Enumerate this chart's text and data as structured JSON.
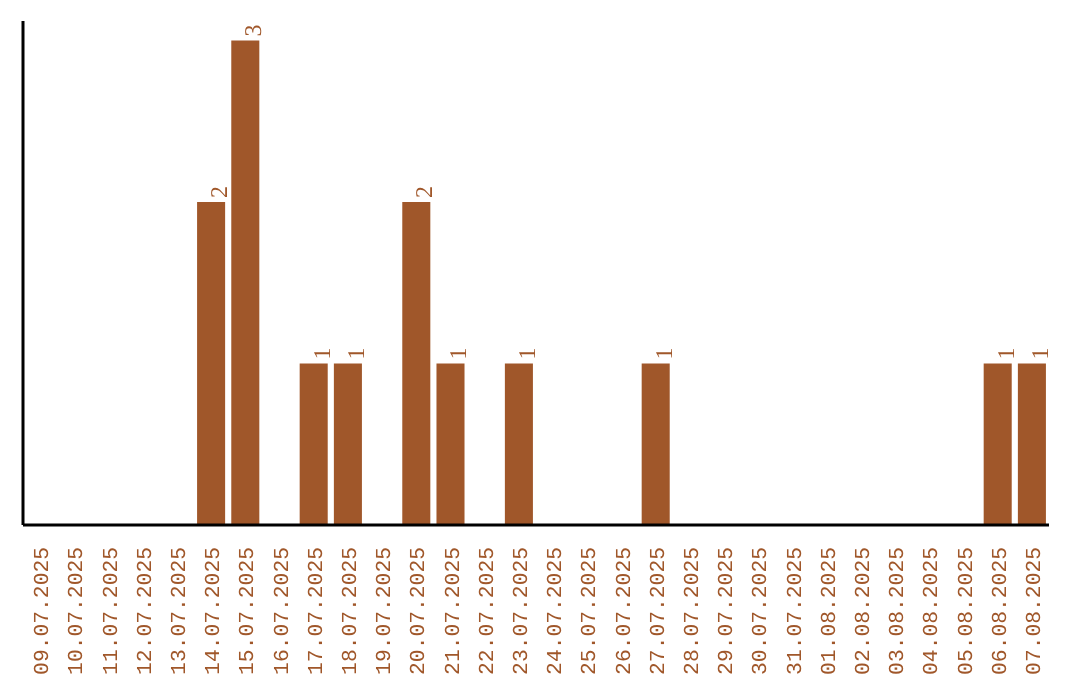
{
  "chart_data": {
    "type": "bar",
    "categories": [
      "09.07.2025",
      "10.07.2025",
      "11.07.2025",
      "12.07.2025",
      "13.07.2025",
      "14.07.2025",
      "15.07.2025",
      "16.07.2025",
      "17.07.2025",
      "18.07.2025",
      "19.07.2025",
      "20.07.2025",
      "21.07.2025",
      "22.07.2025",
      "23.07.2025",
      "24.07.2025",
      "25.07.2025",
      "26.07.2025",
      "27.07.2025",
      "28.07.2025",
      "29.07.2025",
      "30.07.2025",
      "31.07.2025",
      "01.08.2025",
      "02.08.2025",
      "03.08.2025",
      "04.08.2025",
      "05.08.2025",
      "06.08.2025",
      "07.08.2025"
    ],
    "values": [
      0,
      0,
      0,
      0,
      0,
      2,
      3,
      0,
      1,
      1,
      0,
      2,
      1,
      0,
      1,
      0,
      0,
      0,
      1,
      0,
      0,
      0,
      0,
      0,
      0,
      0,
      0,
      0,
      1,
      1
    ],
    "value_labels": [
      null,
      null,
      null,
      null,
      null,
      "2",
      "3",
      null,
      "1",
      "1",
      null,
      "2",
      "1",
      null,
      "1",
      null,
      null,
      null,
      "1",
      null,
      null,
      null,
      null,
      null,
      null,
      null,
      null,
      null,
      "1",
      "1"
    ],
    "color": "#a0572a",
    "tick_labels": "x",
    "grid": false
  }
}
